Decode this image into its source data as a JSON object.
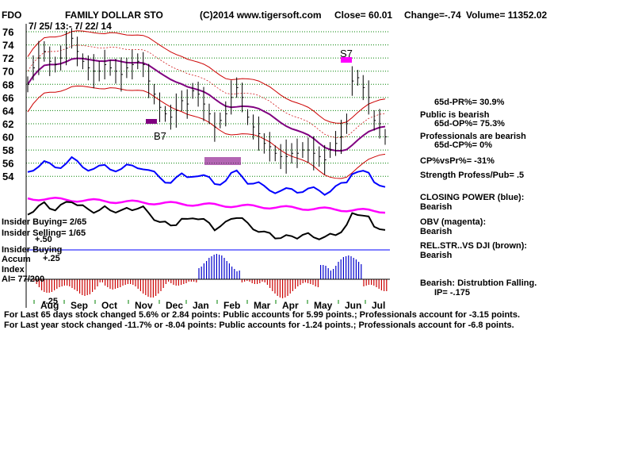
{
  "header": {
    "ticker": "FDO",
    "company": "FAMILY DOLLAR STO",
    "copyright": "(C)2014 www.tigersoft.com",
    "close": "Close=  60.01",
    "change": "Change=-.74",
    "volume": "Volume= 11352.02",
    "date_range": "7/ 25/ 13:- 7/ 22/ 14"
  },
  "signals": {
    "s7": "S7",
    "b7": "B7"
  },
  "panel_labels": {
    "insider_buying": "Insider Buying= 2/65",
    "insider_selling": "Insider Selling= 1/65",
    "insider_label": "Insider Buying",
    "accum": "Accum",
    "index": "Index",
    "ai": "AI= 77/200",
    "plus50": "+.50",
    "plus25": "+.25",
    "minus25": "-.25"
  },
  "side_notes": [
    "65d-PR%= 30.9%",
    "Public is bearish",
    "65d-OP%= 75.3%",
    "Professionals are bearish",
    "65d-CP%= 0%",
    "CP%vsPr%= -31%",
    "Strength Profess/Pub= .5",
    "CLOSING POWER (blue):",
    "Bearish",
    "OBV (magenta):",
    "Bearish",
    "REL.STR..VS DJI (brown):",
    "Bearish",
    "Bearish: Distrubtion Falling.",
    "IP= -.175"
  ],
  "footer": {
    "line1": "For Last 65 days stock changed  5.6% or  2.84 points:  Public accounts for  5.99 points.;  Professionals account for -3.15 points.",
    "line2": "For Last year stock changed -11.7% or -8.04 points:  Public accounts for -1.24 points.;  Professionals account for -6.8 points."
  },
  "colors": {
    "price": "#000000",
    "ma65": "#800080",
    "bands": "#cc0000",
    "closing_power": "#0000ff",
    "obv": "#ff00ff",
    "relstr": "#000000",
    "accum_pos": "#0000cc",
    "accum_neg": "#cc0000",
    "grid": "#008000"
  },
  "chart_data": {
    "type": "line",
    "title": "FAMILY DOLLAR STO",
    "ylim": [
      53,
      77
    ],
    "y_ticks": [
      54,
      56,
      58,
      60,
      62,
      64,
      66,
      68,
      70,
      72,
      74,
      76
    ],
    "x_tick_labels": [
      "Aug",
      "Sep",
      "Oct",
      "Nov",
      "Dec",
      "Jan",
      "Feb",
      "Mar",
      "Apr",
      "May",
      "Jun",
      "Jul"
    ],
    "series": [
      {
        "name": "Close",
        "values": [
          68.0,
          70.5,
          72.0,
          73.0,
          71.5,
          71.0,
          72.0,
          73.5,
          75.0,
          73.0,
          71.5,
          70.5,
          70.0,
          70.0,
          71.0,
          70.5,
          70.0,
          69.5,
          70.5,
          71.0,
          71.5,
          71.0,
          68.5,
          66.5,
          64.5,
          63.5,
          63.0,
          64.0,
          65.5,
          65.0,
          67.0,
          66.5,
          65.0,
          63.5,
          61.5,
          62.5,
          63.5,
          66.0,
          67.5,
          66.0,
          63.0,
          61.5,
          60.5,
          59.0,
          58.5,
          57.5,
          57.0,
          57.0,
          57.5,
          57.5,
          58.0,
          58.0,
          57.5,
          57.0,
          56.5,
          58.0,
          59.0,
          60.0,
          62.0,
          68.5,
          69.0,
          67.5,
          66.0,
          62.5,
          62.0,
          60.0
        ]
      },
      {
        "name": "65-day MA",
        "values": []
      }
    ]
  }
}
